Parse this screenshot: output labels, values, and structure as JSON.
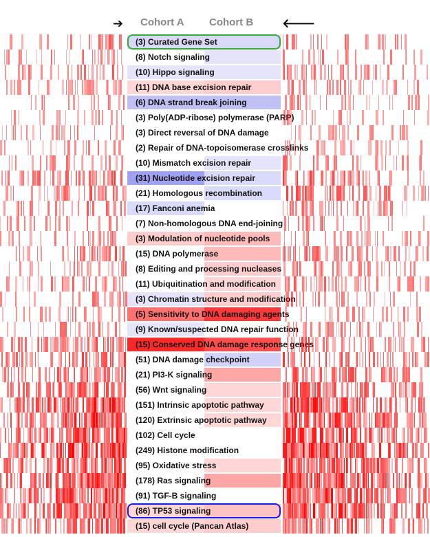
{
  "header": {
    "left_arrow": "➔",
    "right_arrow": "🡐",
    "cohort_a": "Cohort A",
    "cohort_b": "Cohort B"
  },
  "colors": {
    "heat": "#ff0000",
    "down": "#6666ee",
    "up": "#ff3333",
    "selected_outline": "#33aa33",
    "focus_outline": "#1a1aee"
  },
  "pathways": [
    {
      "label": "(3) Curated Gene Set",
      "a": -0.15,
      "b": -0.15,
      "heat": 0.35,
      "outline": "selected"
    },
    {
      "label": "(8) Notch signaling",
      "a": 0.0,
      "b": -0.05,
      "heat": 0.3
    },
    {
      "label": "(10) Hippo signaling",
      "a": -0.05,
      "b": -0.05,
      "heat": 0.35
    },
    {
      "label": "(11) DNA base excision repair",
      "a": 0.05,
      "b": 0.1,
      "heat": 0.3
    },
    {
      "label": "(6) DNA strand break joining",
      "a": -0.35,
      "b": -0.35,
      "heat": 0.25
    },
    {
      "label": "(3) Poly(ADP-ribose) polymerase (PARP)",
      "a": 0.0,
      "b": 0.0,
      "heat": 0.25
    },
    {
      "label": "(3) Direct reversal of DNA damage",
      "a": 0.0,
      "b": 0.0,
      "heat": 0.25
    },
    {
      "label": "(2) Repair of DNA-topoisomerase crosslinks",
      "a": 0.0,
      "b": 0.0,
      "heat": 0.25
    },
    {
      "label": "(10) Mismatch excision repair",
      "a": 0.0,
      "b": -0.05,
      "heat": 0.3
    },
    {
      "label": "(31) Nucleotide excision repair",
      "a": -0.6,
      "b": -0.15,
      "heat": 0.5
    },
    {
      "label": "(21) Homologous recombination",
      "a": 0.0,
      "b": -0.15,
      "heat": 0.45
    },
    {
      "label": "(17) Fanconi anemia",
      "a": -0.15,
      "b": 0.0,
      "heat": 0.4
    },
    {
      "label": "(7) Non-homologous DNA end-joining",
      "a": 0.0,
      "b": 0.0,
      "heat": 0.3
    },
    {
      "label": "(3) Modulation of nucleotide pools",
      "a": 0.1,
      "b": 0.2,
      "heat": 0.3
    },
    {
      "label": "(15) DNA polymerase",
      "a": 0.0,
      "b": 0.2,
      "heat": 0.4
    },
    {
      "label": "(8) Editing and processing nucleases",
      "a": 0.0,
      "b": 0.1,
      "heat": 0.3
    },
    {
      "label": "(11) Ubiquitination and modification",
      "a": 0.0,
      "b": 0.05,
      "heat": 0.35
    },
    {
      "label": "(3) Chromatin structure and modification",
      "a": -0.05,
      "b": 0.1,
      "heat": 0.3
    },
    {
      "label": "(5) Sensitivity to DNA damaging agents",
      "a": 0.6,
      "b": 0.9,
      "heat": 0.3
    },
    {
      "label": "(9) Known/suspected DNA repair function",
      "a": -0.05,
      "b": 0.0,
      "heat": 0.35
    },
    {
      "label": "(15) Conserved DNA damage response genes",
      "a": 1.0,
      "b": 0.8,
      "heat": 0.5
    },
    {
      "label": "(51) DNA damage checkpoint",
      "a": 0.0,
      "b": -0.2,
      "heat": 0.55
    },
    {
      "label": "(21) PI3-K signaling",
      "a": 0.0,
      "b": 0.3,
      "heat": 0.5
    },
    {
      "label": "(56) Wnt signaling",
      "a": 0.0,
      "b": 0.05,
      "heat": 0.6
    },
    {
      "label": "(151) Intrinsic apoptotic pathway",
      "a": 0.0,
      "b": 0.05,
      "heat": 0.85
    },
    {
      "label": "(120) Extrinsic apoptotic pathway",
      "a": 0.0,
      "b": 0.05,
      "heat": 0.8
    },
    {
      "label": "(102) Cell cycle",
      "a": 0.0,
      "b": 0.0,
      "heat": 0.75
    },
    {
      "label": "(249) Histone modification",
      "a": 0.0,
      "b": 0.0,
      "heat": 0.9
    },
    {
      "label": "(95) Oxidative stress",
      "a": 0.0,
      "b": 0.05,
      "heat": 0.8
    },
    {
      "label": "(178) Ras signaling",
      "a": 0.0,
      "b": 0.3,
      "heat": 0.9
    },
    {
      "label": "(91) TGF-B signaling",
      "a": 0.0,
      "b": 0.0,
      "heat": 0.8
    },
    {
      "label": "(86) TP53 signaling",
      "a": 0.05,
      "b": 0.15,
      "heat": 0.85,
      "outline": "focus"
    },
    {
      "label": "(15) cell cycle (Pancan Atlas)",
      "a": 0.05,
      "b": 0.1,
      "heat": 0.65
    }
  ]
}
